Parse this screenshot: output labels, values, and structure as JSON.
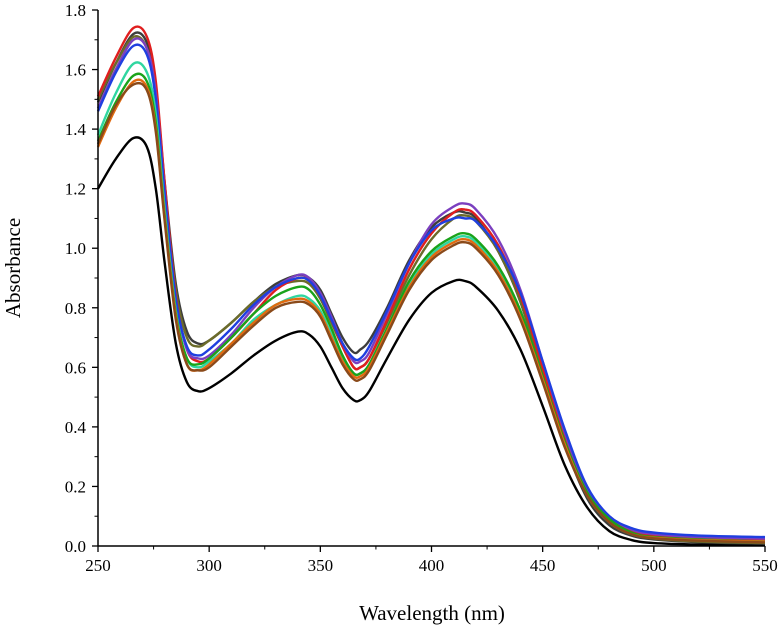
{
  "chart_data": {
    "type": "line",
    "title": "",
    "xlabel": "Wavelength (nm)",
    "ylabel": "Absorbance",
    "xlim": [
      250,
      550
    ],
    "ylim": [
      0.0,
      1.8
    ],
    "xticks": [
      250,
      300,
      350,
      400,
      450,
      500,
      550
    ],
    "xtick_labels": [
      "250",
      "300",
      "350",
      "400",
      "450",
      "500",
      "550"
    ],
    "yticks": [
      0.0,
      0.2,
      0.4,
      0.6,
      0.8,
      1.0,
      1.2,
      1.4,
      1.6,
      1.8
    ],
    "ytick_labels": [
      "0.0",
      "0.2",
      "0.4",
      "0.6",
      "0.8",
      "1.0",
      "1.2",
      "1.4",
      "1.6",
      "1.8"
    ],
    "grid": false,
    "legend": "none",
    "series": [
      {
        "name": "black",
        "color": "#000000",
        "x": [
          250,
          258,
          266,
          272,
          276,
          280,
          285,
          290,
          295,
          300,
          310,
          320,
          330,
          340,
          345,
          350,
          355,
          360,
          365,
          368,
          372,
          380,
          390,
          400,
          410,
          415,
          420,
          430,
          440,
          450,
          460,
          470,
          480,
          490,
          500,
          520,
          550
        ],
        "y": [
          1.2,
          1.3,
          1.37,
          1.34,
          1.2,
          0.95,
          0.68,
          0.55,
          0.52,
          0.53,
          0.58,
          0.64,
          0.69,
          0.72,
          0.71,
          0.67,
          0.6,
          0.53,
          0.49,
          0.49,
          0.52,
          0.63,
          0.76,
          0.85,
          0.89,
          0.89,
          0.87,
          0.79,
          0.66,
          0.47,
          0.27,
          0.13,
          0.05,
          0.02,
          0.01,
          0.005,
          0.003
        ]
      },
      {
        "name": "dark gray",
        "color": "#3d3d3d",
        "x": [
          250,
          258,
          266,
          272,
          276,
          280,
          285,
          290,
          295,
          300,
          310,
          320,
          330,
          340,
          345,
          350,
          355,
          360,
          365,
          368,
          372,
          380,
          390,
          400,
          410,
          415,
          420,
          430,
          440,
          450,
          460,
          470,
          480,
          490,
          500,
          520,
          550
        ],
        "y": [
          1.49,
          1.62,
          1.72,
          1.69,
          1.54,
          1.22,
          0.88,
          0.72,
          0.68,
          0.69,
          0.75,
          0.82,
          0.88,
          0.91,
          0.9,
          0.86,
          0.78,
          0.7,
          0.65,
          0.66,
          0.69,
          0.8,
          0.96,
          1.07,
          1.12,
          1.12,
          1.1,
          0.99,
          0.82,
          0.58,
          0.34,
          0.16,
          0.07,
          0.035,
          0.022,
          0.013,
          0.008
        ]
      },
      {
        "name": "olive",
        "color": "#6b6b2a",
        "x": [
          250,
          258,
          266,
          272,
          276,
          280,
          285,
          290,
          295,
          300,
          310,
          320,
          330,
          340,
          345,
          350,
          355,
          360,
          365,
          368,
          372,
          380,
          390,
          400,
          410,
          415,
          420,
          430,
          440,
          450,
          460,
          470,
          480,
          490,
          500,
          520,
          550
        ],
        "y": [
          1.5,
          1.62,
          1.71,
          1.67,
          1.52,
          1.2,
          0.86,
          0.7,
          0.67,
          0.69,
          0.75,
          0.82,
          0.87,
          0.89,
          0.88,
          0.83,
          0.75,
          0.67,
          0.6,
          0.6,
          0.63,
          0.75,
          0.91,
          1.03,
          1.1,
          1.11,
          1.09,
          0.99,
          0.82,
          0.58,
          0.34,
          0.17,
          0.08,
          0.04,
          0.025,
          0.015,
          0.01
        ]
      },
      {
        "name": "red",
        "color": "#e01e1e",
        "x": [
          250,
          258,
          266,
          272,
          276,
          280,
          285,
          290,
          295,
          300,
          310,
          320,
          330,
          340,
          345,
          350,
          355,
          360,
          365,
          368,
          372,
          380,
          390,
          400,
          410,
          415,
          420,
          430,
          440,
          450,
          460,
          470,
          480,
          490,
          500,
          520,
          550
        ],
        "y": [
          1.51,
          1.64,
          1.74,
          1.71,
          1.56,
          1.22,
          0.84,
          0.66,
          0.62,
          0.63,
          0.7,
          0.78,
          0.86,
          0.9,
          0.89,
          0.84,
          0.76,
          0.67,
          0.6,
          0.6,
          0.63,
          0.76,
          0.93,
          1.05,
          1.12,
          1.13,
          1.11,
          1.01,
          0.84,
          0.6,
          0.36,
          0.18,
          0.09,
          0.05,
          0.035,
          0.025,
          0.02
        ]
      },
      {
        "name": "purple",
        "color": "#7b3fbf",
        "x": [
          250,
          258,
          266,
          272,
          276,
          280,
          285,
          290,
          295,
          300,
          310,
          320,
          330,
          340,
          345,
          350,
          355,
          360,
          365,
          368,
          372,
          380,
          390,
          400,
          410,
          415,
          420,
          430,
          440,
          450,
          460,
          470,
          480,
          490,
          500,
          520,
          550
        ],
        "y": [
          1.47,
          1.6,
          1.7,
          1.67,
          1.52,
          1.19,
          0.83,
          0.66,
          0.63,
          0.64,
          0.71,
          0.8,
          0.87,
          0.91,
          0.9,
          0.85,
          0.77,
          0.68,
          0.62,
          0.62,
          0.65,
          0.78,
          0.95,
          1.08,
          1.14,
          1.15,
          1.13,
          1.03,
          0.86,
          0.62,
          0.38,
          0.19,
          0.1,
          0.055,
          0.04,
          0.03,
          0.025
        ]
      },
      {
        "name": "blue",
        "color": "#1f3fe0",
        "x": [
          250,
          258,
          266,
          272,
          276,
          280,
          285,
          290,
          295,
          300,
          310,
          320,
          330,
          340,
          345,
          350,
          355,
          360,
          365,
          368,
          372,
          380,
          390,
          400,
          410,
          415,
          420,
          430,
          440,
          450,
          460,
          470,
          480,
          490,
          500,
          520,
          550
        ],
        "y": [
          1.46,
          1.59,
          1.68,
          1.65,
          1.5,
          1.18,
          0.83,
          0.67,
          0.64,
          0.66,
          0.73,
          0.81,
          0.87,
          0.9,
          0.89,
          0.84,
          0.76,
          0.68,
          0.63,
          0.63,
          0.67,
          0.79,
          0.95,
          1.06,
          1.1,
          1.1,
          1.09,
          1.0,
          0.85,
          0.62,
          0.39,
          0.2,
          0.1,
          0.06,
          0.045,
          0.035,
          0.03
        ]
      },
      {
        "name": "cyan-green",
        "color": "#2fd6a0",
        "x": [
          250,
          258,
          266,
          272,
          276,
          280,
          285,
          290,
          295,
          300,
          310,
          320,
          330,
          340,
          345,
          350,
          355,
          360,
          365,
          368,
          372,
          380,
          390,
          400,
          410,
          415,
          420,
          430,
          440,
          450,
          460,
          470,
          480,
          490,
          500,
          520,
          550
        ],
        "y": [
          1.38,
          1.52,
          1.62,
          1.59,
          1.45,
          1.13,
          0.79,
          0.63,
          0.6,
          0.62,
          0.68,
          0.76,
          0.81,
          0.84,
          0.83,
          0.79,
          0.71,
          0.63,
          0.58,
          0.58,
          0.61,
          0.73,
          0.88,
          0.98,
          1.03,
          1.04,
          1.02,
          0.93,
          0.78,
          0.56,
          0.34,
          0.17,
          0.08,
          0.04,
          0.028,
          0.02,
          0.015
        ]
      },
      {
        "name": "green",
        "color": "#1aa31a",
        "x": [
          250,
          258,
          266,
          272,
          276,
          280,
          285,
          290,
          295,
          300,
          310,
          320,
          330,
          340,
          345,
          350,
          355,
          360,
          365,
          368,
          372,
          380,
          390,
          400,
          410,
          415,
          420,
          430,
          440,
          450,
          460,
          470,
          480,
          490,
          500,
          520,
          550
        ],
        "y": [
          1.36,
          1.49,
          1.58,
          1.56,
          1.42,
          1.11,
          0.78,
          0.63,
          0.61,
          0.63,
          0.7,
          0.78,
          0.84,
          0.87,
          0.86,
          0.81,
          0.73,
          0.64,
          0.58,
          0.58,
          0.61,
          0.73,
          0.89,
          0.99,
          1.04,
          1.05,
          1.03,
          0.94,
          0.79,
          0.57,
          0.35,
          0.18,
          0.09,
          0.045,
          0.03,
          0.022,
          0.015
        ]
      },
      {
        "name": "orange",
        "color": "#e06a10",
        "x": [
          250,
          258,
          266,
          272,
          276,
          280,
          285,
          290,
          295,
          300,
          310,
          320,
          330,
          340,
          345,
          350,
          355,
          360,
          365,
          368,
          372,
          380,
          390,
          400,
          410,
          415,
          420,
          430,
          440,
          450,
          460,
          470,
          480,
          490,
          500,
          520,
          550
        ],
        "y": [
          1.34,
          1.47,
          1.56,
          1.54,
          1.4,
          1.1,
          0.77,
          0.61,
          0.59,
          0.61,
          0.68,
          0.75,
          0.81,
          0.83,
          0.82,
          0.78,
          0.7,
          0.62,
          0.57,
          0.57,
          0.6,
          0.72,
          0.87,
          0.97,
          1.02,
          1.03,
          1.01,
          0.92,
          0.77,
          0.56,
          0.34,
          0.17,
          0.08,
          0.04,
          0.028,
          0.02,
          0.015
        ]
      },
      {
        "name": "brown",
        "color": "#8a4a1a",
        "x": [
          250,
          258,
          266,
          272,
          276,
          280,
          285,
          290,
          295,
          300,
          310,
          320,
          330,
          340,
          345,
          350,
          355,
          360,
          365,
          368,
          372,
          380,
          390,
          400,
          410,
          415,
          420,
          430,
          440,
          450,
          460,
          470,
          480,
          490,
          500,
          520,
          550
        ],
        "y": [
          1.35,
          1.48,
          1.55,
          1.53,
          1.39,
          1.09,
          0.76,
          0.61,
          0.59,
          0.6,
          0.67,
          0.74,
          0.8,
          0.82,
          0.81,
          0.77,
          0.69,
          0.61,
          0.56,
          0.56,
          0.59,
          0.71,
          0.86,
          0.96,
          1.01,
          1.02,
          1.0,
          0.91,
          0.76,
          0.55,
          0.33,
          0.17,
          0.08,
          0.04,
          0.026,
          0.018,
          0.012
        ]
      }
    ]
  }
}
